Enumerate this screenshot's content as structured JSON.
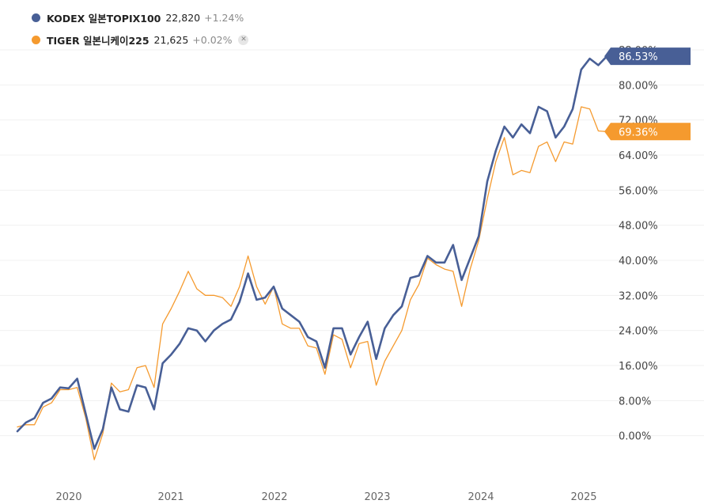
{
  "legend": [
    {
      "name": "KODEX 일본TOPIX100",
      "price": "22,820",
      "change": "+1.24%",
      "color": "#485f96"
    },
    {
      "name": "TIGER 일본니케이225",
      "price": "21,625",
      "change": "+0.02%",
      "color": "#f59a2e",
      "close_icon": "close-icon"
    }
  ],
  "chart_data": {
    "type": "line",
    "x_ticks": [
      "2020",
      "2021",
      "2022",
      "2023",
      "2024",
      "2025"
    ],
    "y_ticks": [
      "0.00%",
      "8.00%",
      "16.00%",
      "24.00%",
      "32.00%",
      "40.00%",
      "48.00%",
      "56.00%",
      "64.00%",
      "72.00%",
      "80.00%",
      "88.00%"
    ],
    "ylim": [
      -8,
      88
    ],
    "x_start": "2019-07",
    "series": [
      {
        "name": "KODEX 일본TOPIX100",
        "color": "#485f96",
        "last_label": "86.53%",
        "values": [
          1,
          3,
          4,
          7.5,
          8.5,
          11,
          10.8,
          13,
          5,
          -3,
          1.5,
          11,
          6,
          5.5,
          11.5,
          11,
          6,
          16.5,
          18.5,
          21,
          24.5,
          24,
          21.5,
          24,
          25.5,
          26.5,
          30.5,
          37,
          31,
          31.5,
          34,
          29,
          27.5,
          26,
          22.5,
          21.5,
          15.5,
          24.5,
          24.5,
          18.5,
          22.5,
          26,
          17.5,
          24.5,
          27.5,
          29.5,
          36,
          36.5,
          41,
          39.5,
          39.5,
          43.5,
          35.5,
          40.5,
          45.5,
          58,
          65,
          70.5,
          68,
          71,
          69,
          75,
          74,
          68,
          70.5,
          74.5,
          83.5,
          86,
          84.5,
          86.53
        ]
      },
      {
        "name": "TIGER 일본니케이225",
        "color": "#f59a2e",
        "last_label": "69.36%",
        "values": [
          2,
          2.5,
          2.5,
          6.5,
          7.5,
          10.5,
          10.5,
          11,
          4,
          -5.5,
          0.5,
          12,
          10,
          10.5,
          15.5,
          16,
          11,
          25.5,
          29,
          33,
          37.5,
          33.5,
          32,
          32,
          31.5,
          29.5,
          34,
          41,
          34,
          30,
          34,
          25.5,
          24.5,
          24.5,
          20.5,
          20,
          14,
          23,
          22,
          15.5,
          21,
          21.5,
          11.5,
          17,
          20.5,
          24,
          31,
          34.5,
          40.5,
          39,
          38,
          37.5,
          29.5,
          38,
          44.5,
          54,
          62.5,
          68,
          59.5,
          60.5,
          60,
          66,
          67,
          62.5,
          67,
          66.5,
          75,
          74.5,
          69.5,
          69.36
        ]
      }
    ]
  }
}
